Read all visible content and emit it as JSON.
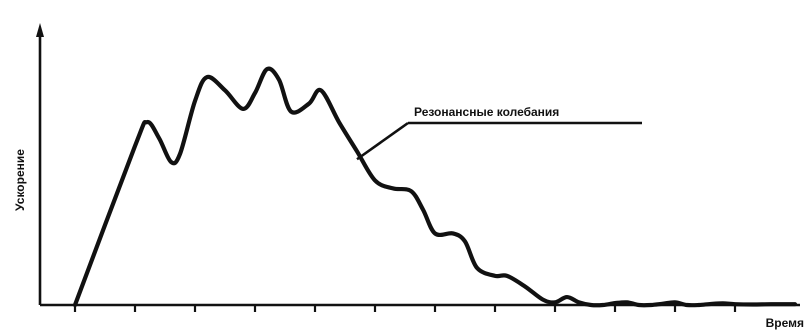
{
  "chart_data": {
    "type": "line",
    "title": "",
    "xlabel": "Время",
    "ylabel": "Ускорение",
    "xlim": [
      0,
      12.3
    ],
    "ylim": [
      0,
      100
    ],
    "grid": false,
    "legend": "none",
    "annotation": {
      "text": "Резонансные колебания",
      "x": 4.7,
      "y": 55
    },
    "series": [
      {
        "color": "#111111",
        "x": [
          0,
          1.0,
          1.2,
          1.4,
          1.6,
          1.75,
          2.0,
          2.2,
          2.5,
          2.8,
          3.0,
          3.2,
          3.4,
          3.6,
          3.9,
          4.1,
          4.4,
          4.7,
          5.0,
          5.3,
          5.6,
          5.8,
          6.0,
          6.3,
          6.5,
          6.7,
          7.0,
          7.2,
          7.5,
          7.8,
          8.0,
          8.2,
          8.4,
          8.6,
          8.8,
          9.0,
          9.2,
          9.4,
          9.6,
          9.8,
          10.0,
          10.2,
          10.4,
          10.6,
          10.8,
          11.0,
          11.3,
          11.6,
          12.0
        ],
        "y": [
          0,
          60,
          69,
          63,
          54,
          57,
          77,
          86,
          81,
          74,
          80,
          89,
          85,
          73,
          76,
          81,
          69,
          58,
          47,
          44,
          43,
          36,
          27,
          27,
          24,
          14,
          11,
          11,
          7,
          2,
          1,
          3,
          1,
          0,
          0,
          0.7,
          1,
          0,
          0,
          0.5,
          1,
          0,
          0,
          0.4,
          0.6,
          0.3,
          0.2,
          0.3,
          0.3
        ]
      }
    ],
    "x_ticks": [
      0,
      1,
      2,
      3,
      4,
      5,
      6,
      7,
      8,
      9,
      10,
      11
    ]
  }
}
